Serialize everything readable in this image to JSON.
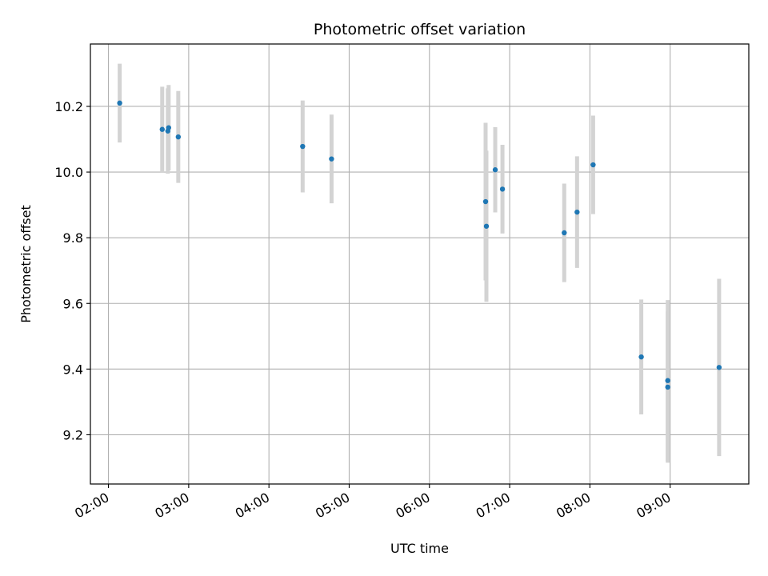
{
  "chart_data": {
    "type": "scatter",
    "title": "Photometric offset variation",
    "xlabel": "UTC time",
    "ylabel": "Photometric offset",
    "x_ticks": [
      "02:00",
      "03:00",
      "04:00",
      "05:00",
      "06:00",
      "07:00",
      "08:00",
      "09:00"
    ],
    "x_tick_hours": [
      2,
      3,
      4,
      5,
      6,
      7,
      8,
      9
    ],
    "y_ticks": [
      "9.2",
      "9.4",
      "9.6",
      "9.8",
      "10.0",
      "10.2"
    ],
    "y_tick_values": [
      9.2,
      9.4,
      9.6,
      9.8,
      10.0,
      10.2
    ],
    "xlim_hours": [
      1.775,
      9.98
    ],
    "ylim": [
      9.05,
      10.39
    ],
    "grid": true,
    "marker_color": "#1f77b4",
    "errorbar_color": "#d3d3d3",
    "points": [
      {
        "time": "02:09",
        "hour": 2.14,
        "y": 10.21,
        "err": 0.12
      },
      {
        "time": "02:40",
        "hour": 2.67,
        "y": 10.13,
        "err": 0.13
      },
      {
        "time": "02:44",
        "hour": 2.74,
        "y": 10.125,
        "err": 0.13
      },
      {
        "time": "02:45",
        "hour": 2.75,
        "y": 10.135,
        "err": 0.13
      },
      {
        "time": "02:52",
        "hour": 2.87,
        "y": 10.107,
        "err": 0.14
      },
      {
        "time": "04:25",
        "hour": 4.42,
        "y": 10.078,
        "err": 0.14
      },
      {
        "time": "04:47",
        "hour": 4.78,
        "y": 10.04,
        "err": 0.135
      },
      {
        "time": "06:42",
        "hour": 6.7,
        "y": 9.91,
        "err": 0.24
      },
      {
        "time": "06:43",
        "hour": 6.71,
        "y": 9.835,
        "err": 0.23
      },
      {
        "time": "06:49",
        "hour": 6.82,
        "y": 10.007,
        "err": 0.13
      },
      {
        "time": "06:55",
        "hour": 6.91,
        "y": 9.948,
        "err": 0.135
      },
      {
        "time": "07:41",
        "hour": 7.68,
        "y": 9.815,
        "err": 0.15
      },
      {
        "time": "07:50",
        "hour": 7.84,
        "y": 9.878,
        "err": 0.17
      },
      {
        "time": "08:02",
        "hour": 8.04,
        "y": 10.022,
        "err": 0.15
      },
      {
        "time": "08:38",
        "hour": 8.64,
        "y": 9.437,
        "err": 0.175
      },
      {
        "time": "08:58",
        "hour": 8.97,
        "y": 9.365,
        "err": 0.245
      },
      {
        "time": "08:58",
        "hour": 8.97,
        "y": 9.345,
        "err": 0.23
      },
      {
        "time": "09:36",
        "hour": 9.61,
        "y": 9.405,
        "err": 0.27
      }
    ]
  }
}
